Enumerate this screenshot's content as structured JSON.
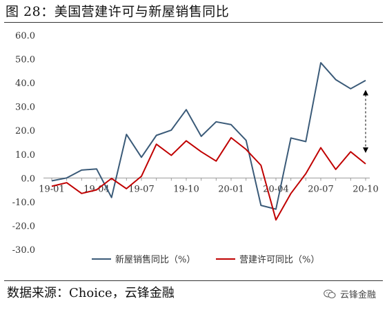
{
  "figure": {
    "title": "图 28：美国营建许可与新屋销售同比",
    "source": "数据来源：Choice，云锋金融",
    "watermark": "云锋金融",
    "watermark_icon": "wechat-icon"
  },
  "chart_data": {
    "type": "line",
    "ylim": [
      -30,
      60
    ],
    "yticks": [
      "60.0",
      "50.0",
      "40.0",
      "30.0",
      "20.0",
      "10.0",
      "0.0",
      "-10.0",
      "-20.0",
      "-30.0"
    ],
    "x_tick_labels": [
      "19-01",
      "19-04",
      "19-07",
      "19-10",
      "20-01",
      "20-04",
      "20-07",
      "20-10"
    ],
    "x": [
      "19-01",
      "19-02",
      "19-03",
      "19-04",
      "19-05",
      "19-06",
      "19-07",
      "19-08",
      "19-09",
      "19-10",
      "19-11",
      "19-12",
      "20-01",
      "20-02",
      "20-03",
      "20-04",
      "20-05",
      "20-06",
      "20-07",
      "20-08",
      "20-09",
      "20-10"
    ],
    "series": [
      {
        "name": "新屋销售同比（%）",
        "color": "#3a5a78",
        "values": [
          -1.2,
          0.0,
          3.3,
          3.8,
          -8.2,
          18.3,
          8.7,
          17.9,
          20.1,
          28.7,
          17.5,
          23.6,
          22.4,
          15.8,
          -11.5,
          -13.1,
          16.8,
          15.3,
          48.4,
          41.3,
          37.5,
          41.0
        ]
      },
      {
        "name": "营建许可同比（%）",
        "color": "#c00000",
        "values": [
          -3.5,
          -2.0,
          -6.5,
          -5.0,
          -0.2,
          -4.5,
          0.7,
          14.2,
          9.5,
          15.6,
          11.0,
          7.1,
          16.9,
          12.0,
          5.3,
          -17.6,
          -6.5,
          1.8,
          12.7,
          3.6,
          11.0,
          5.9
        ]
      }
    ],
    "annotation": {
      "type": "double-arrow",
      "x": "20-10",
      "y_from": 37.0,
      "y_to": 10.5,
      "style": "dashed"
    },
    "legend": "bottom",
    "grid": false
  }
}
